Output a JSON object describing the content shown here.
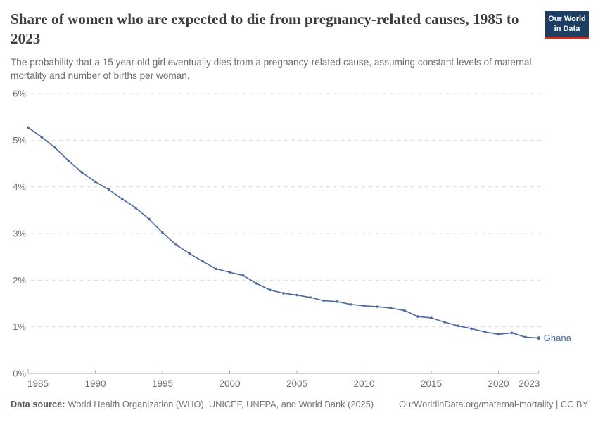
{
  "header": {
    "title": "Share of women who are expected to die from pregnancy-related causes, 1985 to 2023",
    "subtitle": "The probability that a 15 year old girl eventually dies from a pregnancy-related cause, assuming constant levels of maternal mortality and number of births per woman."
  },
  "logo": {
    "line1": "Our World",
    "line2": "in Data",
    "bg_color": "#1d3d63",
    "accent_color": "#c0362c"
  },
  "chart_data": {
    "type": "line",
    "title": "Share of women who are expected to die from pregnancy-related causes, 1985 to 2023",
    "subtitle": "The probability that a 15 year old girl eventually dies from a pregnancy-related cause, assuming constant levels of maternal mortality and number of births per woman.",
    "xlabel": "",
    "ylabel": "",
    "xlim": [
      1985,
      2023
    ],
    "ylim": [
      0,
      6
    ],
    "x_ticks": [
      1985,
      1990,
      1995,
      2000,
      2005,
      2010,
      2015,
      2020,
      2023
    ],
    "y_ticks": [
      0,
      1,
      2,
      3,
      4,
      5,
      6
    ],
    "y_tick_suffix": "%",
    "grid": "horizontal-dashed",
    "legend_position": "end-of-line-label",
    "series": [
      {
        "name": "Ghana",
        "color": "#4C6A9C",
        "x": [
          1985,
          1986,
          1987,
          1988,
          1989,
          1990,
          1991,
          1992,
          1993,
          1994,
          1995,
          1996,
          1997,
          1998,
          1999,
          2000,
          2001,
          2002,
          2003,
          2004,
          2005,
          2006,
          2007,
          2008,
          2009,
          2010,
          2011,
          2012,
          2013,
          2014,
          2015,
          2016,
          2017,
          2018,
          2019,
          2020,
          2021,
          2022,
          2023
        ],
        "values": [
          5.27,
          5.07,
          4.84,
          4.56,
          4.31,
          4.11,
          3.94,
          3.74,
          3.55,
          3.31,
          3.02,
          2.76,
          2.57,
          2.4,
          2.24,
          2.17,
          2.1,
          1.93,
          1.79,
          1.72,
          1.68,
          1.63,
          1.56,
          1.54,
          1.48,
          1.45,
          1.43,
          1.4,
          1.35,
          1.22,
          1.19,
          1.1,
          1.02,
          0.96,
          0.89,
          0.84,
          0.87,
          0.78,
          0.76
        ]
      }
    ],
    "colors": {
      "line": "#4C6A9C",
      "grid": "#dcdcdc",
      "axis": "#a8a8a8",
      "tick_label": "#6e6e6e"
    }
  },
  "footer": {
    "data_source_label": "Data source:",
    "data_source_text": "World Health Organization (WHO), UNICEF, UNFPA, and World Bank (2025)",
    "link_text": "OurWorldinData.org/maternal-mortality | CC BY"
  }
}
